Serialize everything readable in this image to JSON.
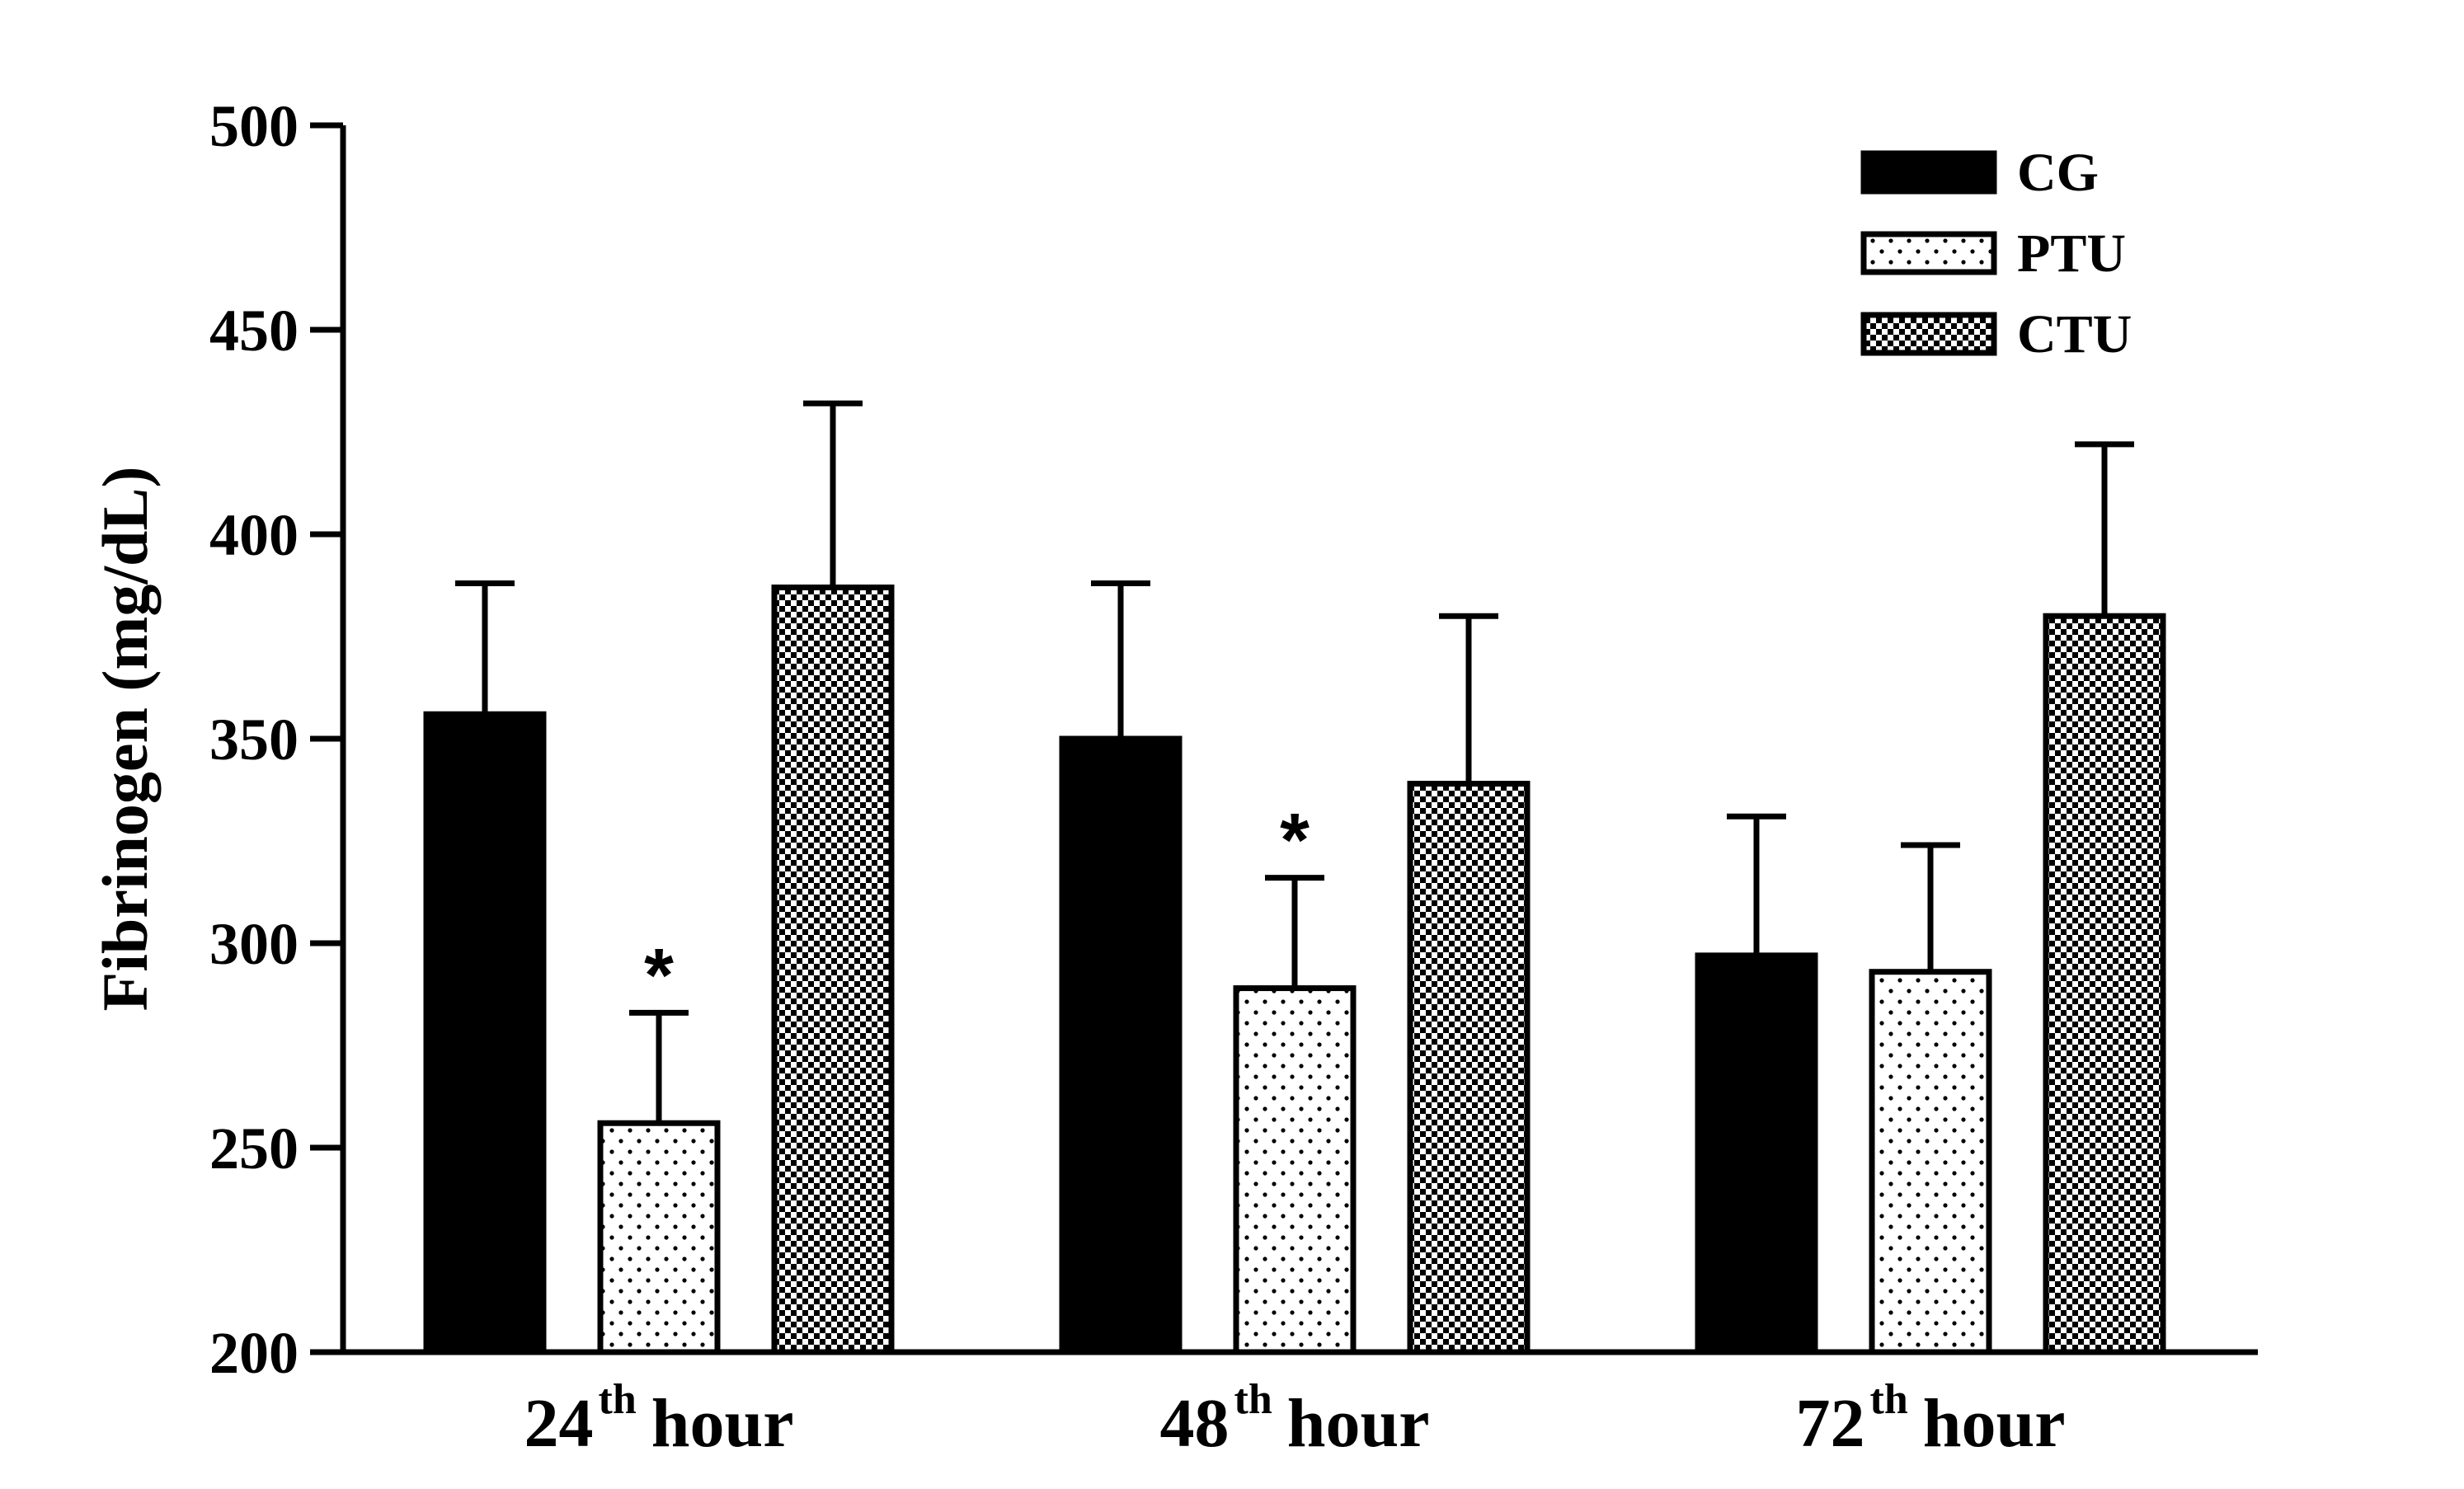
{
  "chart_data": {
    "type": "bar",
    "title": "",
    "xlabel": "",
    "ylabel": "Fibrinogen (mg/dL)",
    "ylim": [
      200,
      500
    ],
    "yticks": [
      "200",
      "250",
      "300",
      "350",
      "400",
      "450",
      "500"
    ],
    "categories": [
      {
        "number": "24",
        "sup": "th",
        "word": "hour"
      },
      {
        "number": "48",
        "sup": "th",
        "word": "hour"
      },
      {
        "number": "72",
        "sup": "th",
        "word": "hour"
      }
    ],
    "series": [
      {
        "name": "CG",
        "pattern": "solid",
        "color": "#000000",
        "values": [
          356,
          350,
          297
        ],
        "errors": [
          32,
          38,
          34
        ]
      },
      {
        "name": "PTU",
        "pattern": "dots",
        "color": "#000000",
        "values": [
          256,
          289,
          293
        ],
        "errors": [
          27,
          27,
          31
        ]
      },
      {
        "name": "CTU",
        "pattern": "checker",
        "color": "#000000",
        "values": [
          387,
          339,
          380
        ],
        "errors": [
          45,
          41,
          42
        ]
      }
    ],
    "annotations": [
      {
        "text": "*",
        "series": "PTU",
        "category_index": 0
      },
      {
        "text": "*",
        "series": "PTU",
        "category_index": 1
      }
    ],
    "legend_position": "top-right",
    "grid": false
  }
}
